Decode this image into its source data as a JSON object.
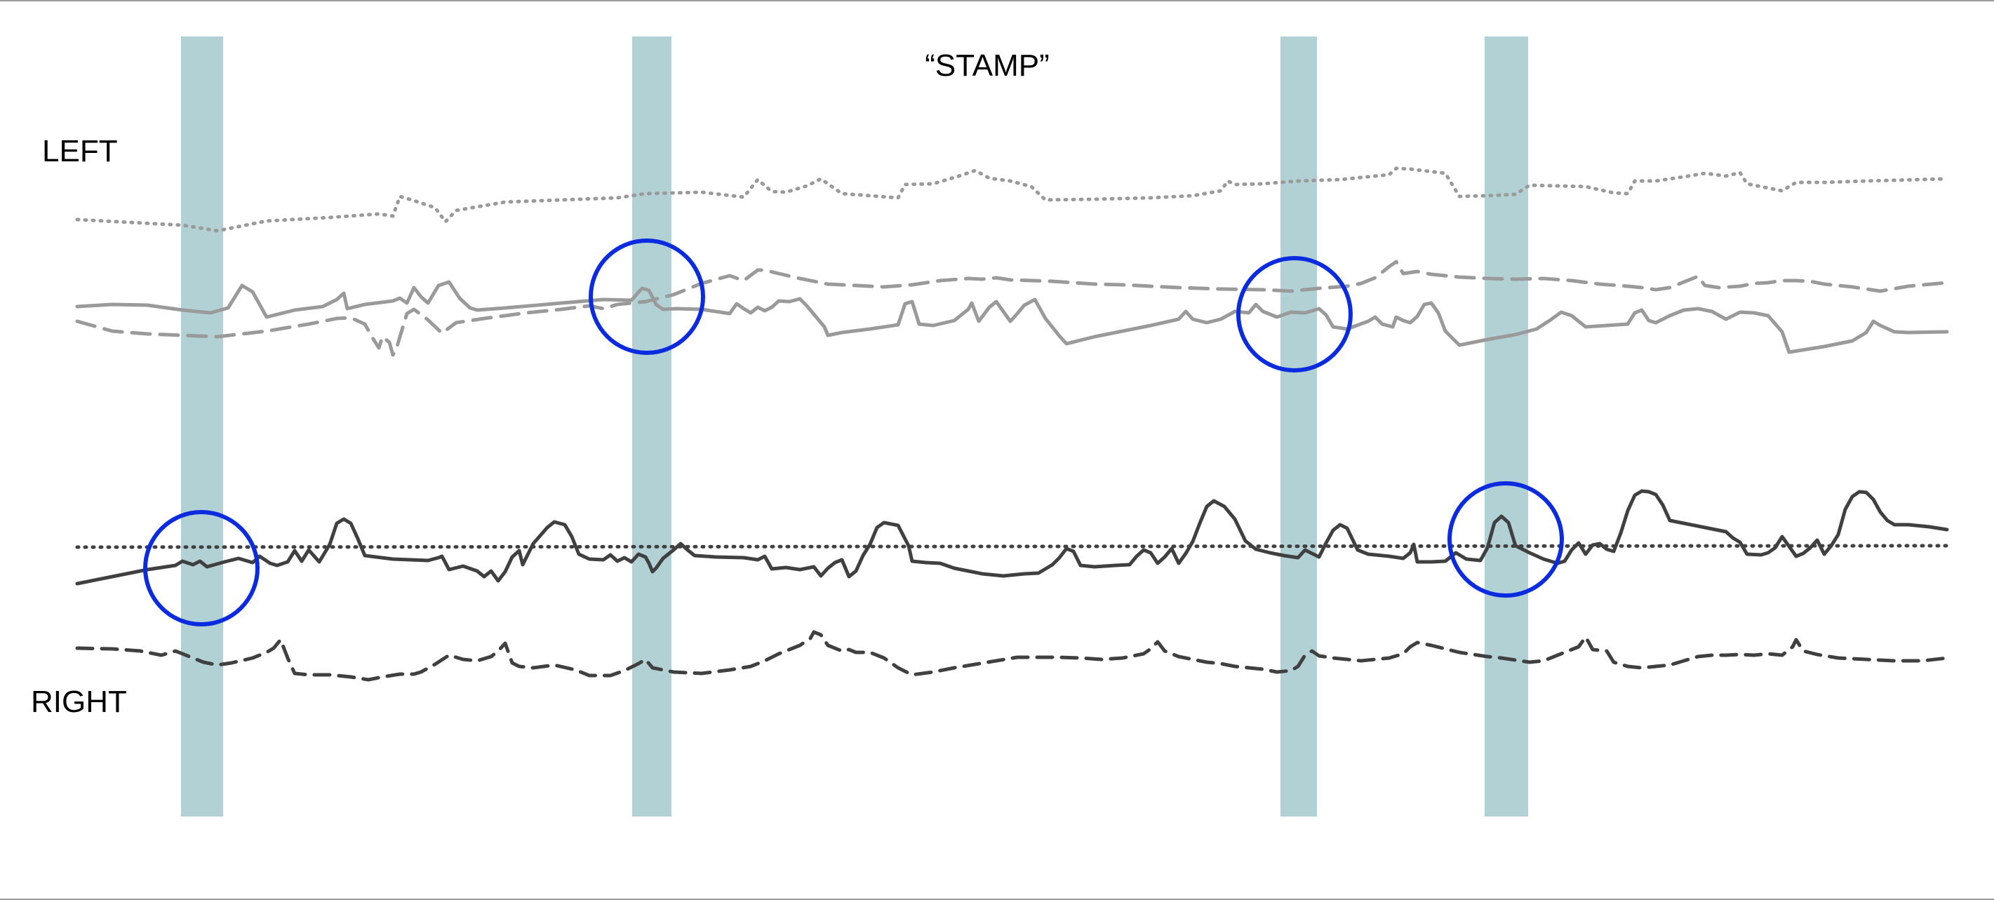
{
  "title": "“STAMP”",
  "labels": {
    "left": "LEFT",
    "right": "RIGHT"
  },
  "colors": {
    "band": "#b1d1d4",
    "circle": "#0b2be0",
    "left_traces": "#9a9a9a",
    "right_traces": "#404040"
  },
  "stamp_events": [
    {
      "name": "stamp-1",
      "circled_trace": "right-solid"
    },
    {
      "name": "stamp-2",
      "circled_trace": "left-solid"
    },
    {
      "name": "stamp-3",
      "circled_trace": "left-solid"
    },
    {
      "name": "stamp-4",
      "circled_trace": "right-solid"
    }
  ],
  "traces": [
    {
      "name": "left-dotted-trace",
      "group": "left",
      "style": "dotted"
    },
    {
      "name": "left-solid-trace",
      "group": "left",
      "style": "solid"
    },
    {
      "name": "left-dashed-trace",
      "group": "left",
      "style": "dashed"
    },
    {
      "name": "right-dotted-trace",
      "group": "right",
      "style": "dotted"
    },
    {
      "name": "right-solid-trace",
      "group": "right",
      "style": "solid"
    },
    {
      "name": "right-dashed-trace",
      "group": "right",
      "style": "dashed"
    }
  ]
}
